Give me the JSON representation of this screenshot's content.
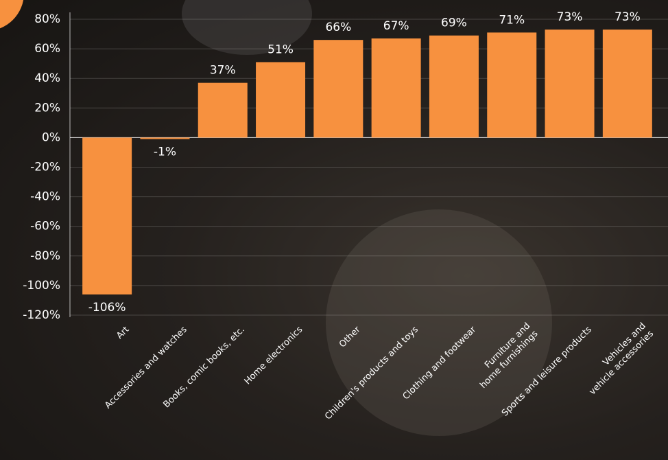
{
  "chart_data": {
    "type": "bar",
    "categories": [
      "Art",
      "Accessories and watches",
      "Books, comic books, etc.",
      "Home electronics",
      "Other",
      "Children's products and toys",
      "Clothing and footwear",
      "Furniture and\nhome furnishings",
      "Sports and leisure products",
      "Vehicles and\nvehicle accessories"
    ],
    "values": [
      -106,
      -1,
      37,
      51,
      66,
      67,
      69,
      71,
      73,
      73
    ],
    "value_labels": [
      "-106%",
      "-1%",
      "37%",
      "51%",
      "66%",
      "67%",
      "69%",
      "71%",
      "73%",
      "73%"
    ],
    "color": "#f7913f",
    "ylim": [
      -120,
      80
    ],
    "yticks": [
      {
        "value": -120,
        "label": "-120%"
      },
      {
        "value": -100,
        "label": "-100%"
      },
      {
        "value": -80,
        "label": "-80%"
      },
      {
        "value": -60,
        "label": "-60%"
      },
      {
        "value": -40,
        "label": "-40%"
      },
      {
        "value": -20,
        "label": "-20%"
      },
      {
        "value": 0,
        "label": "0%"
      },
      {
        "value": 20,
        "label": "20%"
      },
      {
        "value": 40,
        "label": "40%"
      },
      {
        "value": 60,
        "label": "60%"
      },
      {
        "value": 80,
        "label": "80%"
      }
    ],
    "grid": true
  }
}
